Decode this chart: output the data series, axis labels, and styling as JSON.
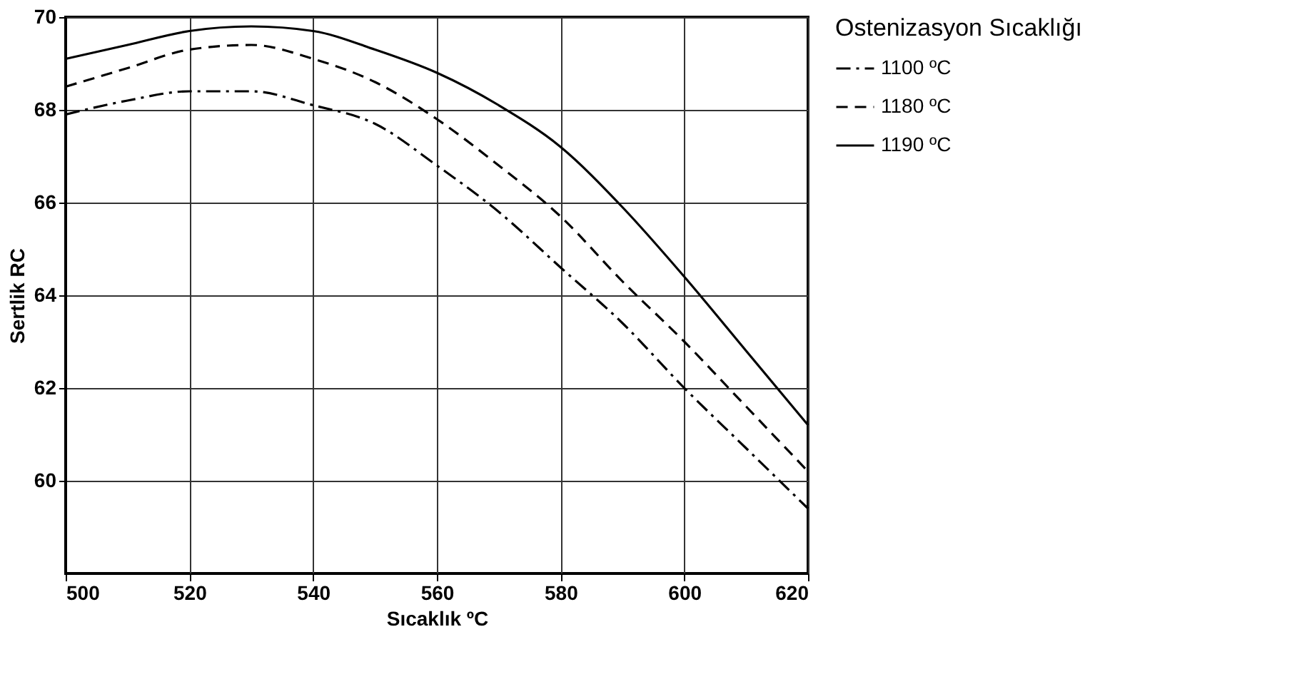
{
  "chart_data": {
    "type": "line",
    "xlabel": "Sıcaklık ºC",
    "ylabel": "Sertlik RC",
    "legend_title": "Ostenizasyon Sıcaklığı",
    "xlim": [
      500,
      620
    ],
    "xticks": [
      500,
      520,
      540,
      560,
      580,
      600,
      620
    ],
    "ylim": [
      58,
      70
    ],
    "yticks": [
      60,
      62,
      64,
      66,
      68,
      70
    ],
    "grid": true,
    "legend": "right",
    "marker": "none",
    "x": [
      500,
      510,
      520,
      530,
      540,
      550,
      560,
      570,
      580,
      590,
      600,
      610,
      620
    ],
    "series": [
      {
        "name": "1100 ºC",
        "color": "#000000",
        "line_style": "dashdot",
        "values": [
          67.9,
          68.2,
          68.4,
          68.4,
          68.1,
          67.7,
          66.8,
          65.8,
          64.6,
          63.4,
          62.0,
          60.7,
          59.4
        ]
      },
      {
        "name": "1180 ºC",
        "color": "#000000",
        "line_style": "dashed",
        "values": [
          68.5,
          68.9,
          69.3,
          69.4,
          69.1,
          68.6,
          67.8,
          66.8,
          65.7,
          64.3,
          63.0,
          61.6,
          60.2
        ]
      },
      {
        "name": "1190 ºC",
        "color": "#000000",
        "line_style": "solid",
        "values": [
          69.1,
          69.4,
          69.7,
          69.8,
          69.7,
          69.3,
          68.8,
          68.1,
          67.2,
          65.9,
          64.4,
          62.8,
          61.2
        ]
      }
    ]
  }
}
